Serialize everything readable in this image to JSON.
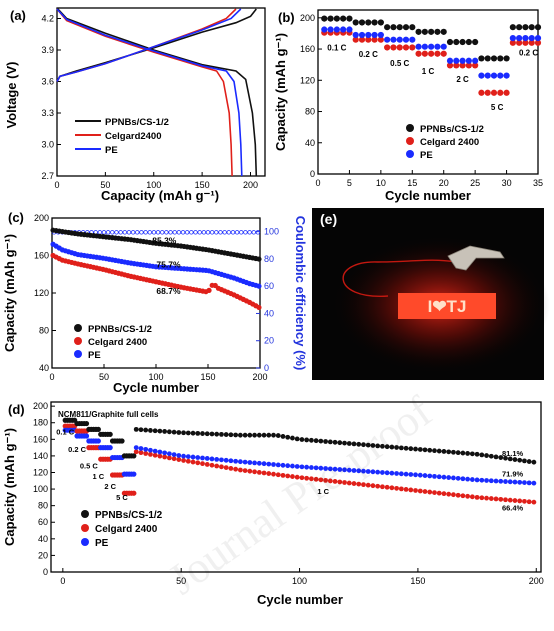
{
  "watermark": "Journal Pre-proof",
  "colors": {
    "black": "#111111",
    "red": "#e0201a",
    "blue": "#1a2bff",
    "axis_blue": "#2233dd"
  },
  "chart_data": [
    {
      "id": "a",
      "panel": "(a)",
      "type": "line",
      "xlabel": "Capacity (mAh g⁻¹)",
      "ylabel": "Voltage (V)",
      "xlim": [
        0,
        215
      ],
      "ylim": [
        2.7,
        4.3
      ],
      "xticks": [
        0,
        50,
        100,
        150,
        200
      ],
      "yticks": [
        2.7,
        3.0,
        3.3,
        3.6,
        3.9,
        4.2
      ],
      "legend": [
        "PPNBs/CS-1/2",
        "Celgard2400",
        "PE"
      ],
      "legend_position": "lower-left",
      "series": [
        {
          "name": "PPNBs/CS-1/2",
          "color": "#111111",
          "charge": [
            [
              0,
              3.6
            ],
            [
              3,
              3.65
            ],
            [
              20,
              3.7
            ],
            [
              50,
              3.78
            ],
            [
              100,
              3.92
            ],
            [
              150,
              4.07
            ],
            [
              185,
              4.16
            ],
            [
              200,
              4.22
            ],
            [
              206,
              4.29
            ]
          ],
          "discharge": [
            [
              0,
              4.3
            ],
            [
              10,
              4.2
            ],
            [
              50,
              4.06
            ],
            [
              100,
              3.9
            ],
            [
              150,
              3.76
            ],
            [
              185,
              3.7
            ],
            [
              195,
              3.62
            ],
            [
              202,
              3.3
            ],
            [
              205,
              3.0
            ],
            [
              206,
              2.7
            ]
          ]
        },
        {
          "name": "Celgard2400",
          "color": "#e0201a",
          "charge": [
            [
              0,
              3.6
            ],
            [
              3,
              3.65
            ],
            [
              20,
              3.69
            ],
            [
              50,
              3.77
            ],
            [
              100,
              3.93
            ],
            [
              150,
              4.1
            ],
            [
              175,
              4.2
            ],
            [
              185,
              4.29
            ]
          ],
          "discharge": [
            [
              0,
              4.29
            ],
            [
              10,
              4.18
            ],
            [
              50,
              4.03
            ],
            [
              100,
              3.88
            ],
            [
              150,
              3.74
            ],
            [
              165,
              3.7
            ],
            [
              172,
              3.6
            ],
            [
              178,
              3.3
            ],
            [
              180,
              3.0
            ],
            [
              181,
              2.7
            ]
          ]
        },
        {
          "name": "PE",
          "color": "#1a2bff",
          "charge": [
            [
              0,
              3.6
            ],
            [
              3,
              3.65
            ],
            [
              20,
              3.69
            ],
            [
              50,
              3.77
            ],
            [
              100,
              3.93
            ],
            [
              150,
              4.09
            ],
            [
              180,
              4.2
            ],
            [
              190,
              4.29
            ]
          ],
          "discharge": [
            [
              0,
              4.29
            ],
            [
              10,
              4.19
            ],
            [
              50,
              4.04
            ],
            [
              100,
              3.89
            ],
            [
              150,
              3.75
            ],
            [
              175,
              3.7
            ],
            [
              183,
              3.6
            ],
            [
              188,
              3.3
            ],
            [
              190,
              3.0
            ],
            [
              191,
              2.7
            ]
          ]
        }
      ]
    },
    {
      "id": "b",
      "panel": "(b)",
      "type": "scatter",
      "xlabel": "Cycle number",
      "ylabel": "Capacity (mAh g⁻¹)",
      "xlim": [
        0,
        35
      ],
      "ylim": [
        0,
        210
      ],
      "xticks": [
        0,
        5,
        10,
        15,
        20,
        25,
        30,
        35
      ],
      "yticks": [
        0,
        40,
        80,
        120,
        160,
        200
      ],
      "legend": [
        "PPNBs/CS-1/2",
        "Celgard 2400",
        "PE"
      ],
      "legend_position": "lower-right",
      "rate_labels": [
        {
          "text": "0.1 C",
          "x": 3,
          "y": 158
        },
        {
          "text": "0.2 C",
          "x": 8,
          "y": 150
        },
        {
          "text": "0.5 C",
          "x": 13,
          "y": 138
        },
        {
          "text": "1 C",
          "x": 17.5,
          "y": 128
        },
        {
          "text": "2 C",
          "x": 23,
          "y": 118
        },
        {
          "text": "5 C",
          "x": 28.5,
          "y": 82
        },
        {
          "text": "0.2 C",
          "x": 33.5,
          "y": 152
        }
      ],
      "series": [
        {
          "name": "PPNBs/CS-1/2",
          "color": "#111111",
          "segments": [
            {
              "from": 1,
              "to": 5,
              "value": 199
            },
            {
              "from": 6,
              "to": 10,
              "value": 194
            },
            {
              "from": 11,
              "to": 15,
              "value": 188
            },
            {
              "from": 16,
              "to": 20,
              "value": 182
            },
            {
              "from": 21,
              "to": 25,
              "value": 169
            },
            {
              "from": 26,
              "to": 30,
              "value": 148
            },
            {
              "from": 31,
              "to": 35,
              "value": 188
            }
          ]
        },
        {
          "name": "Celgard 2400",
          "color": "#e0201a",
          "segments": [
            {
              "from": 1,
              "to": 5,
              "value": 181
            },
            {
              "from": 6,
              "to": 10,
              "value": 172
            },
            {
              "from": 11,
              "to": 15,
              "value": 162
            },
            {
              "from": 16,
              "to": 20,
              "value": 154
            },
            {
              "from": 21,
              "to": 25,
              "value": 139
            },
            {
              "from": 26,
              "to": 30,
              "value": 104
            },
            {
              "from": 31,
              "to": 35,
              "value": 168
            }
          ]
        },
        {
          "name": "PE",
          "color": "#1a2bff",
          "segments": [
            {
              "from": 1,
              "to": 5,
              "value": 185
            },
            {
              "from": 6,
              "to": 10,
              "value": 178
            },
            {
              "from": 11,
              "to": 15,
              "value": 172
            },
            {
              "from": 16,
              "to": 20,
              "value": 163
            },
            {
              "from": 21,
              "to": 25,
              "value": 145
            },
            {
              "from": 26,
              "to": 30,
              "value": 126
            },
            {
              "from": 31,
              "to": 35,
              "value": 174
            }
          ]
        }
      ]
    },
    {
      "id": "c",
      "panel": "(c)",
      "type": "scatter",
      "xlabel": "Cycle number",
      "ylabel": "Capacity (mAh g⁻¹)",
      "y2label": "Coulombic efficiency (%)",
      "xlim": [
        0,
        200
      ],
      "ylim": [
        40,
        200
      ],
      "y2lim": [
        0,
        110
      ],
      "xticks": [
        0,
        50,
        100,
        150,
        200
      ],
      "yticks": [
        40,
        80,
        120,
        160,
        200
      ],
      "y2ticks": [
        0,
        20,
        40,
        60,
        80,
        100
      ],
      "legend": [
        "PPNBs/CS-1/2",
        "Celgard 2400",
        "PE"
      ],
      "legend_position": "lower-left",
      "annotations": [
        {
          "text": "85.3%",
          "x": 108,
          "y": 173
        },
        {
          "text": "75.7%",
          "x": 112,
          "y": 147
        },
        {
          "text": "68.7%",
          "x": 112,
          "y": 119
        }
      ],
      "series": [
        {
          "name": "PPNBs/CS-1/2",
          "color": "#111111",
          "points": [
            [
              1,
              187
            ],
            [
              25,
              183
            ],
            [
              50,
              180
            ],
            [
              75,
              177
            ],
            [
              100,
              173
            ],
            [
              125,
              170
            ],
            [
              150,
              166
            ],
            [
              175,
              161
            ],
            [
              200,
              156
            ]
          ]
        },
        {
          "name": "Celgard 2400",
          "color": "#e0201a",
          "points": [
            [
              1,
              160
            ],
            [
              10,
              155
            ],
            [
              25,
              151
            ],
            [
              50,
              145
            ],
            [
              75,
              138
            ],
            [
              100,
              132
            ],
            [
              125,
              126
            ],
            [
              150,
              121
            ],
            [
              155,
              130
            ],
            [
              160,
              125
            ],
            [
              175,
              118
            ],
            [
              190,
              110
            ],
            [
              200,
              104
            ]
          ]
        },
        {
          "name": "PE",
          "color": "#1a2bff",
          "points": [
            [
              1,
              172
            ],
            [
              10,
              166
            ],
            [
              25,
              161
            ],
            [
              50,
              157
            ],
            [
              75,
              152
            ],
            [
              100,
              148
            ],
            [
              125,
              146
            ],
            [
              150,
              144
            ],
            [
              175,
              136
            ],
            [
              190,
              130
            ],
            [
              200,
              127
            ]
          ]
        }
      ],
      "ce_value": 99.5
    },
    {
      "id": "d",
      "panel": "(d)",
      "type": "scatter",
      "xlabel": "Cycle number",
      "ylabel": "Capacity (mAh g⁻¹)",
      "xlim": [
        -5,
        202
      ],
      "ylim": [
        0,
        205
      ],
      "xticks": [
        0,
        50,
        100,
        150,
        200
      ],
      "yticks": [
        0,
        20,
        40,
        60,
        80,
        100,
        120,
        140,
        160,
        180,
        200
      ],
      "inset_title": "NCM811/Graphite full cells",
      "legend": [
        "PPNBs/CS-1/2",
        "Celgard 2400",
        "PE"
      ],
      "legend_position": "lower-left",
      "annotations": [
        {
          "text": "0.1 C",
          "x": 1,
          "y": 166
        },
        {
          "text": "0.2 C",
          "x": 6,
          "y": 145
        },
        {
          "text": "0.5 C",
          "x": 11,
          "y": 125
        },
        {
          "text": "1 C",
          "x": 15,
          "y": 112
        },
        {
          "text": "2 C",
          "x": 20,
          "y": 100
        },
        {
          "text": "5 C",
          "x": 25,
          "y": 87
        },
        {
          "text": "1 C",
          "x": 110,
          "y": 94
        },
        {
          "text": "81.1%",
          "x": 190,
          "y": 140
        },
        {
          "text": "71.9%",
          "x": 190,
          "y": 115
        },
        {
          "text": "66.4%",
          "x": 190,
          "y": 74
        }
      ],
      "rate_steps": [
        {
          "from": 1,
          "to": 5,
          "values": [
            183,
            176,
            171
          ]
        },
        {
          "from": 6,
          "to": 10,
          "values": [
            179,
            170,
            164
          ]
        },
        {
          "from": 11,
          "to": 15,
          "values": [
            172,
            150,
            158
          ]
        },
        {
          "from": 16,
          "to": 20,
          "values": [
            166,
            136,
            150
          ]
        },
        {
          "from": 21,
          "to": 25,
          "values": [
            158,
            117,
            138
          ]
        },
        {
          "from": 26,
          "to": 30,
          "values": [
            140,
            95,
            118
          ]
        }
      ],
      "series": [
        {
          "name": "PPNBs/CS-1/2",
          "color": "#111111",
          "points": [
            [
              31,
              172
            ],
            [
              50,
              168
            ],
            [
              75,
              165
            ],
            [
              90,
              165
            ],
            [
              100,
              160
            ],
            [
              125,
              154
            ],
            [
              150,
              148
            ],
            [
              175,
              142
            ],
            [
              200,
              132
            ]
          ]
        },
        {
          "name": "Celgard 2400",
          "color": "#e0201a",
          "points": [
            [
              31,
              145
            ],
            [
              50,
              135
            ],
            [
              75,
              123
            ],
            [
              100,
              114
            ],
            [
              125,
              106
            ],
            [
              150,
              98
            ],
            [
              175,
              90
            ],
            [
              200,
              84
            ]
          ]
        },
        {
          "name": "PE",
          "color": "#1a2bff",
          "points": [
            [
              31,
              150
            ],
            [
              50,
              140
            ],
            [
              75,
              133
            ],
            [
              100,
              127
            ],
            [
              125,
              122
            ],
            [
              150,
              117
            ],
            [
              175,
              111
            ],
            [
              200,
              107
            ]
          ]
        }
      ]
    }
  ],
  "photo_e": {
    "panel": "(e)",
    "sign_text": "I❤TJ"
  }
}
